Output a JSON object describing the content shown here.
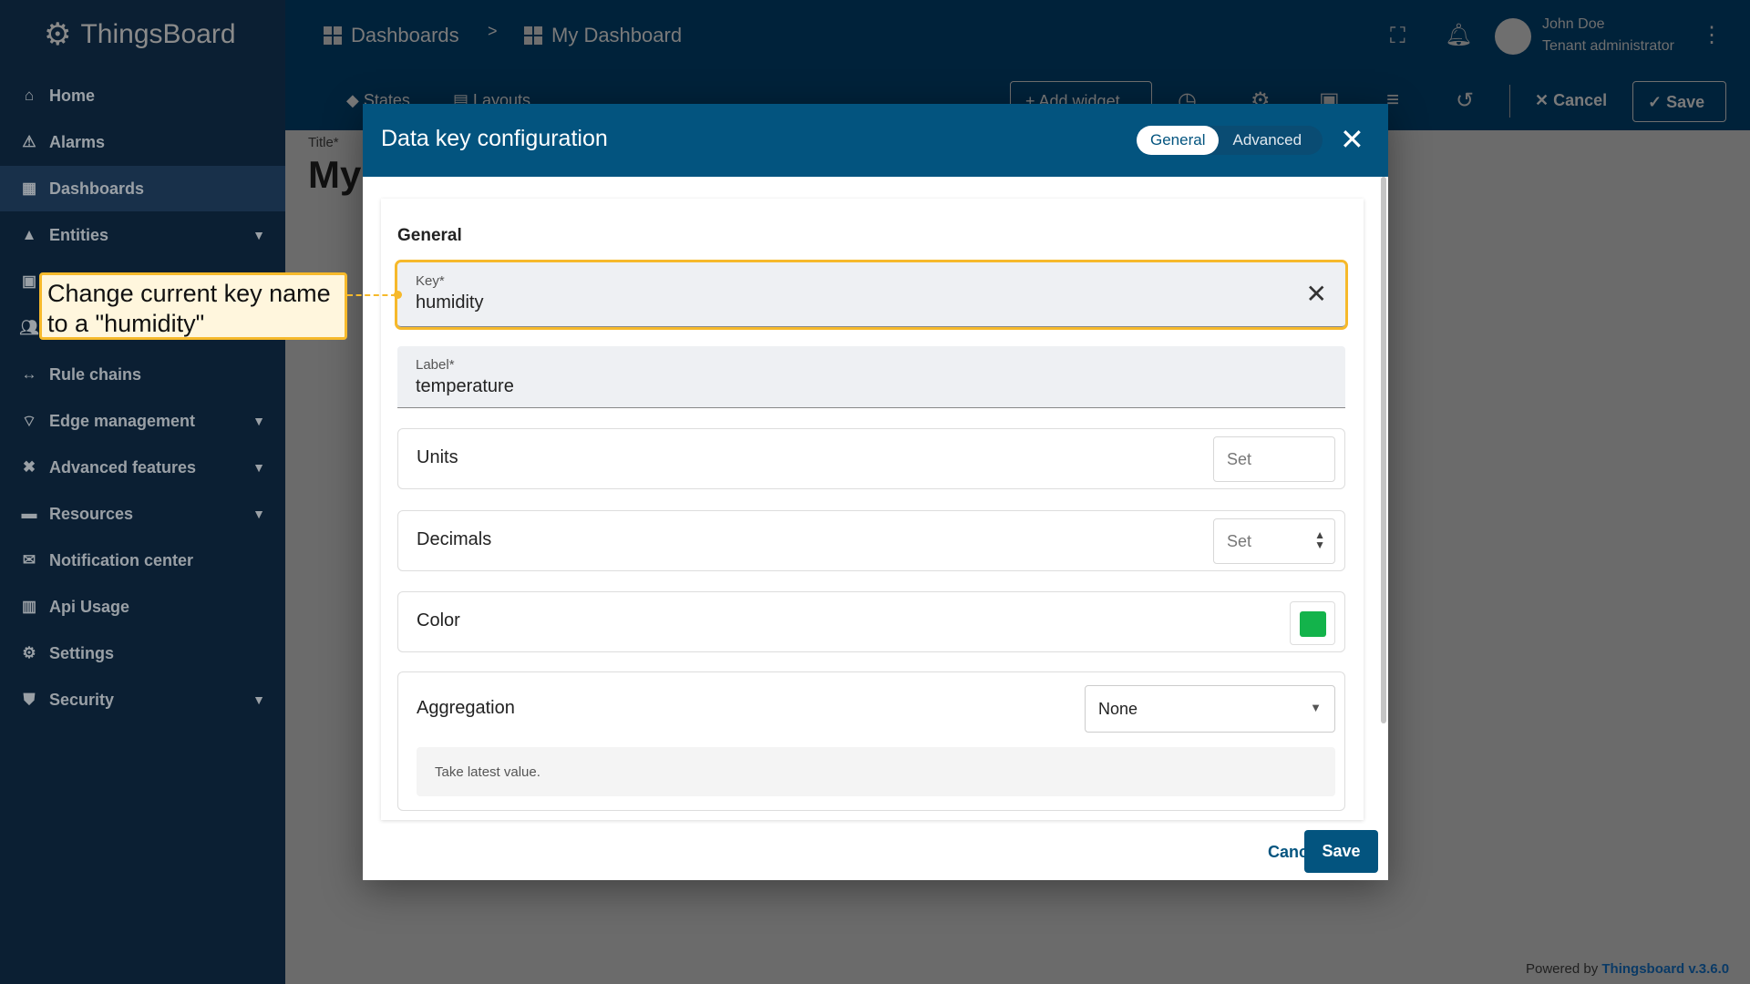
{
  "app": {
    "name": "ThingsBoard"
  },
  "breadcrumb": {
    "parent": "Dashboards",
    "separator": ">",
    "current": "My Dashboard"
  },
  "user": {
    "name": "John Doe",
    "role": "Tenant administrator"
  },
  "sidebar": {
    "items": [
      {
        "label": "Home",
        "icon": "home-icon"
      },
      {
        "label": "Alarms",
        "icon": "warning-icon"
      },
      {
        "label": "Dashboards",
        "icon": "dashboard-icon",
        "selected": true
      },
      {
        "label": "Entities",
        "icon": "entities-icon",
        "expandable": true
      },
      {
        "label": "",
        "icon": "profiles-icon"
      },
      {
        "label": "",
        "icon": "customers-icon"
      },
      {
        "label": "Rule chains",
        "icon": "rule-chain-icon"
      },
      {
        "label": "Edge management",
        "icon": "edge-icon",
        "expandable": true
      },
      {
        "label": "Advanced features",
        "icon": "tools-icon",
        "expandable": true
      },
      {
        "label": "Resources",
        "icon": "folder-icon",
        "expandable": true
      },
      {
        "label": "Notification center",
        "icon": "notification-icon"
      },
      {
        "label": "Api Usage",
        "icon": "chart-icon"
      },
      {
        "label": "Settings",
        "icon": "gear-icon"
      },
      {
        "label": "Security",
        "icon": "shield-icon",
        "expandable": true
      }
    ]
  },
  "toolbar": {
    "states": "States",
    "layouts": "Layouts",
    "add_widget": "+ Add widget",
    "cancel": "Cancel",
    "save": "Save"
  },
  "main": {
    "title_label": "Title*",
    "title_value": "My"
  },
  "footer": {
    "powered_by": "Powered by",
    "brand": "Thingsboard v.3.6.0"
  },
  "dialog": {
    "title": "Data key configuration",
    "tabs": [
      {
        "label": "General",
        "active": true
      },
      {
        "label": "Advanced",
        "active": false
      }
    ],
    "section_title": "General",
    "key": {
      "label": "Key*",
      "value": "humidity"
    },
    "label_field": {
      "label": "Label*",
      "value": "temperature"
    },
    "units": {
      "label": "Units",
      "placeholder": "Set"
    },
    "decimals": {
      "label": "Decimals",
      "placeholder": "Set"
    },
    "color": {
      "label": "Color",
      "value": "#13b34b"
    },
    "aggregation": {
      "label": "Aggregation",
      "value": "None",
      "hint": "Take latest value."
    },
    "cancel": "Cancel",
    "save": "Save"
  },
  "callout": {
    "text": "Change current key name to a \"humidity\"",
    "color": "#f6b92b"
  }
}
